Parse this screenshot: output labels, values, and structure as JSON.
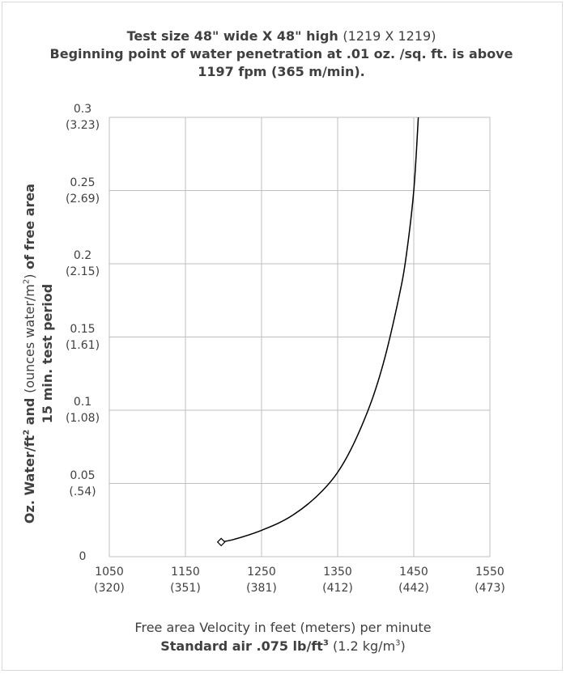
{
  "title": {
    "line1_bold": "Test size 48\" wide X 48\" high",
    "line1_light": "(1219 X 1219)",
    "line2": "Beginning point of water penetration at .01 oz. /sq. ft. is above",
    "line3": "1197 fpm (365 m/min)."
  },
  "ylabel": {
    "part1": "Oz. Water/ft",
    "sup1": "2",
    "part2": " and ",
    "light": "(ounces water/m",
    "sup2": "2",
    "light_close": ")",
    "part3": " of free area",
    "line2": "15 min. test period"
  },
  "xlabel": {
    "line1_bold": "Free area Velocity in feet",
    "line1_light": "(meters)",
    "line1_end": "per minute",
    "line2_bold": "Standard air .075 lb/ft",
    "line2_sup": "3",
    "line2_light": "(1.2 kg/m",
    "line2_light_sup": "3",
    "line2_light_close": ")"
  },
  "chart_data": {
    "type": "line",
    "xlim": [
      1050,
      1550
    ],
    "ylim": [
      0,
      0.3
    ],
    "grid": true,
    "x_ticks": [
      {
        "value": 1050,
        "label": "1050",
        "sub": "(320)"
      },
      {
        "value": 1150,
        "label": "1150",
        "sub": "(351)"
      },
      {
        "value": 1250,
        "label": "1250",
        "sub": "(381)"
      },
      {
        "value": 1350,
        "label": "1350",
        "sub": "(412)"
      },
      {
        "value": 1450,
        "label": "1450",
        "sub": "(442)"
      },
      {
        "value": 1550,
        "label": "1550",
        "sub": "(473)"
      }
    ],
    "y_ticks": [
      {
        "value": 0,
        "label": "0",
        "sub": ""
      },
      {
        "value": 0.05,
        "label": "0.05",
        "sub": "(.54)"
      },
      {
        "value": 0.1,
        "label": "0.1",
        "sub": "(1.08)"
      },
      {
        "value": 0.15,
        "label": "0.15",
        "sub": "(1.61)"
      },
      {
        "value": 0.2,
        "label": "0.2",
        "sub": "(2.15)"
      },
      {
        "value": 0.25,
        "label": "0.25",
        "sub": "(2.69)"
      },
      {
        "value": 0.3,
        "label": "0.3",
        "sub": "(3.23)"
      }
    ],
    "series": [
      {
        "color": "#000000",
        "marker_start": "diamond",
        "points": [
          {
            "x": 1197,
            "y": 0.01
          },
          {
            "x": 1215,
            "y": 0.012
          },
          {
            "x": 1250,
            "y": 0.018
          },
          {
            "x": 1290,
            "y": 0.028
          },
          {
            "x": 1330,
            "y": 0.045
          },
          {
            "x": 1360,
            "y": 0.066
          },
          {
            "x": 1390,
            "y": 0.1
          },
          {
            "x": 1410,
            "y": 0.132
          },
          {
            "x": 1430,
            "y": 0.176
          },
          {
            "x": 1440,
            "y": 0.205
          },
          {
            "x": 1450,
            "y": 0.25
          },
          {
            "x": 1456,
            "y": 0.3
          }
        ]
      }
    ]
  }
}
